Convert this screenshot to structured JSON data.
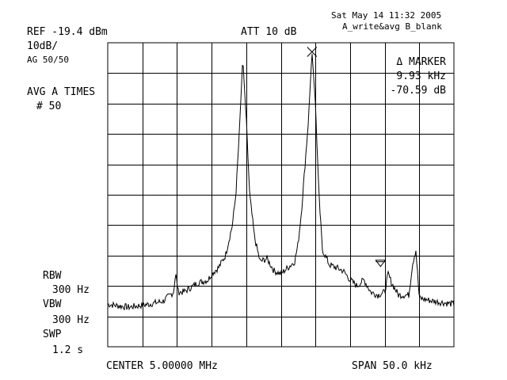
{
  "header": {
    "timestamp": "Sat May 14 11:32 2005",
    "trace_mode": "A_write&avg B_blank",
    "ref_level": "REF -19.4 dBm",
    "attenuation": "ATT 10 dB",
    "scale": "10dB/",
    "avg_gain": "AG 50/50",
    "avg_label": "AVG A TIMES",
    "avg_count": "# 50"
  },
  "marker": {
    "title": "Δ MARKER",
    "freq_delta": "9.93 kHz",
    "level_delta": "-70.59 dB"
  },
  "settings": {
    "rbw_label": "RBW",
    "rbw_value": "300 Hz",
    "vbw_label": "VBW",
    "vbw_value": "300 Hz",
    "swp_label": "SWP",
    "swp_value": "1.2 s"
  },
  "footer": {
    "center": "CENTER 5.00000 MHz",
    "span": "SPAN 50.0 kHz"
  },
  "chart_data": {
    "type": "line",
    "x_unit": "MHz",
    "y_unit": "dB",
    "xlim": [
      4.975,
      5.025
    ],
    "ylim": [
      -100,
      0
    ],
    "x_divisions": 10,
    "y_divisions": 10,
    "grid": true,
    "series": [
      {
        "x": [
          4.975,
          4.978,
          4.981,
          4.983,
          4.9845,
          4.9848,
          4.9852,
          4.986,
          4.988,
          4.9895,
          4.99,
          4.991,
          4.992,
          4.993,
          4.9935,
          4.994,
          4.9945,
          4.995,
          4.9955,
          4.9962,
          4.997,
          4.998,
          4.999,
          5.0,
          5.001,
          5.002,
          5.0025,
          5.003,
          5.0035,
          5.004,
          5.0045,
          5.005,
          5.0055,
          5.006,
          5.007,
          5.008,
          5.009,
          5.01,
          5.011,
          5.012,
          5.013,
          5.014,
          5.015,
          5.0155,
          5.016,
          5.017,
          5.0185,
          5.019,
          5.0195,
          5.02,
          5.022,
          5.025
        ],
        "y": [
          -86,
          -87,
          -86,
          -85,
          -82,
          -76,
          -82,
          -82,
          -79,
          -78,
          -76,
          -74,
          -70,
          -60,
          -50,
          -30,
          -5,
          -25,
          -50,
          -64,
          -72,
          -71,
          -75,
          -76,
          -74,
          -72,
          -66,
          -55,
          -40,
          -25,
          -3,
          -20,
          -50,
          -68,
          -73,
          -74,
          -75,
          -78,
          -80,
          -78,
          -82,
          -83,
          -82,
          -76,
          -79,
          -83,
          -83,
          -73,
          -68,
          -84,
          -85,
          -86
        ]
      }
    ],
    "markers": [
      {
        "name": "reference",
        "shape": "x",
        "x": 5.0045,
        "y": -3
      },
      {
        "name": "delta",
        "shape": "triangle-down",
        "x": 5.0144,
        "y": -73.6
      }
    ]
  }
}
